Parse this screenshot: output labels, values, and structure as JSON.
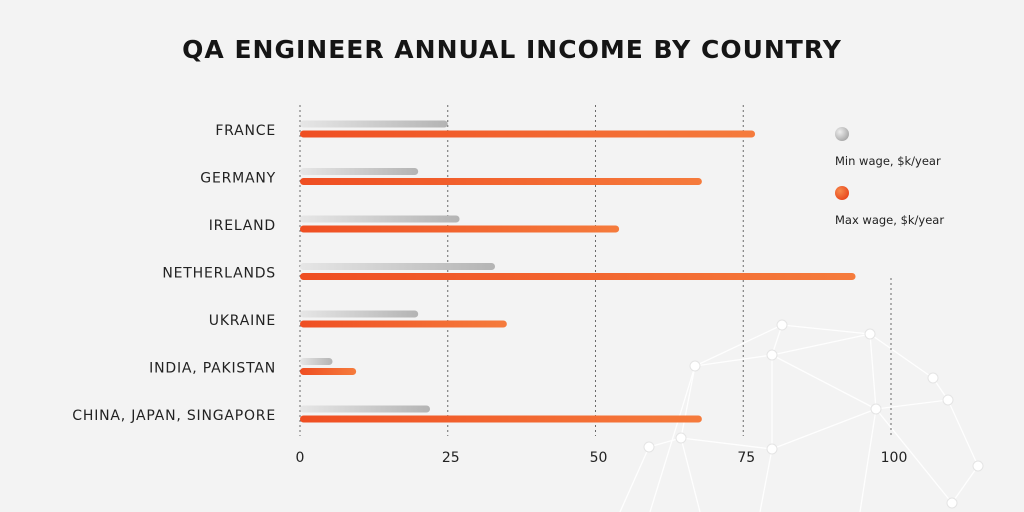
{
  "chart_data": {
    "type": "bar",
    "orientation": "horizontal",
    "title": "QA ENGINEER ANNUAL INCOME BY COUNTRY",
    "categories": [
      "FRANCE",
      "GERMANY",
      "IRELAND",
      "NETHERLANDS",
      "UKRAINE",
      "INDIA, PAKISTAN",
      "CHINA, JAPAN, SINGAPORE"
    ],
    "series": [
      {
        "name": "Min wage, $k/year",
        "values": [
          25,
          20,
          27,
          33,
          20,
          5.5,
          22
        ],
        "color": "#c4c4c4"
      },
      {
        "name": "Max wage, $k/year",
        "values": [
          77,
          68,
          54,
          94,
          35,
          9.5,
          68
        ],
        "color": "#f05a28"
      }
    ],
    "x_ticks": [
      0,
      25,
      50,
      75,
      100
    ],
    "xlim": [
      0,
      100
    ],
    "grid": true,
    "legend_position": "right"
  }
}
